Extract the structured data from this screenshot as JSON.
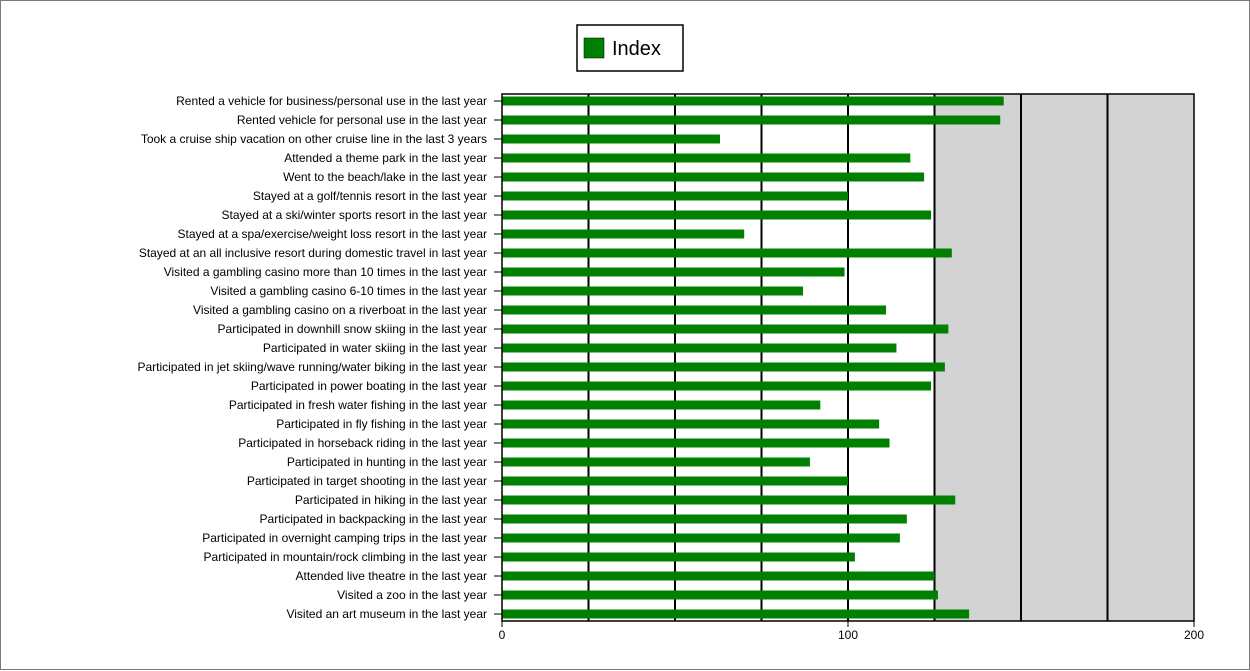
{
  "chart_data": {
    "type": "bar",
    "orientation": "horizontal",
    "title": "",
    "xlabel": "",
    "ylabel": "",
    "xlim": [
      0,
      200
    ],
    "x_ticks": [
      0,
      100,
      200
    ],
    "gridlines": [
      25,
      50,
      75,
      100,
      125,
      150,
      175
    ],
    "shaded_region_from": 125,
    "grid": true,
    "legend": {
      "position": "top-center",
      "entries": [
        "Index"
      ]
    },
    "categories": [
      "Rented a vehicle for business/personal use in the last year",
      "Rented vehicle for personal use in the last year",
      "Took a cruise ship vacation on other cruise line in the last 3 years",
      "Attended a theme park in the last year",
      "Went to the beach/lake in the last year",
      "Stayed at a golf/tennis resort in the last year",
      "Stayed at a ski/winter sports resort in the last year",
      "Stayed at a spa/exercise/weight loss resort in the last year",
      "Stayed at an all inclusive resort during domestic travel in last year",
      "Visited a gambling casino more than 10 times in the last year",
      "Visited a gambling casino 6-10 times in the last year",
      "Visited a gambling casino on a riverboat in the last year",
      "Participated in downhill snow skiing in the last year",
      "Participated in water skiing in the last year",
      "Participated in jet skiing/wave running/water biking in the last year",
      "Participated in power boating in the last year",
      "Participated in fresh water fishing in the last year",
      "Participated in fly fishing in the last year",
      "Participated in horseback riding in the last year",
      "Participated in hunting in the last year",
      "Participated in target shooting in the last year",
      "Participated in hiking in the last year",
      "Participated in backpacking in the last year",
      "Participated in overnight camping trips in the last year",
      "Participated in mountain/rock climbing in the last year",
      "Attended live theatre in the last year",
      "Visited a zoo in the last year",
      "Visited an art museum in the last year"
    ],
    "series": [
      {
        "name": "Index",
        "color": "#008000",
        "values": [
          145,
          144,
          63,
          118,
          122,
          100,
          124,
          70,
          130,
          99,
          87,
          111,
          129,
          114,
          128,
          124,
          92,
          109,
          112,
          89,
          100,
          131,
          117,
          115,
          102,
          125,
          126,
          135
        ]
      }
    ]
  },
  "colors": {
    "bar": "#008000",
    "plot_background": "#ffffff",
    "shaded_background": "#d3d3d3",
    "grid": "#000000"
  }
}
